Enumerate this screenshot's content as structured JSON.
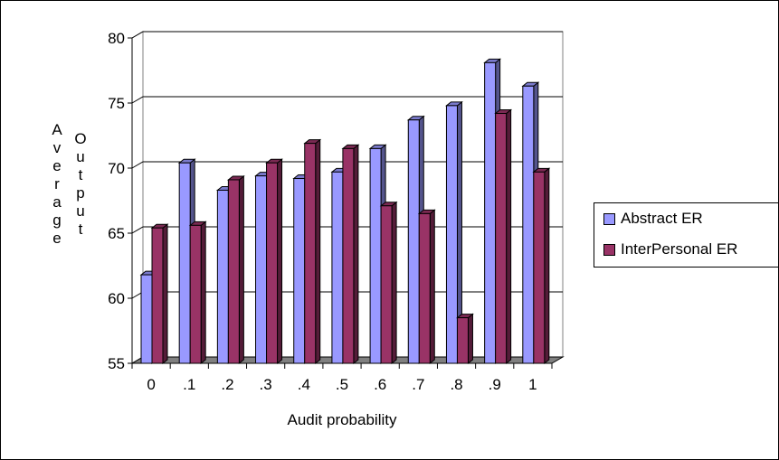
{
  "chart_data": {
    "type": "bar",
    "categories": [
      "0",
      ".1",
      ".2",
      ".3",
      ".4",
      ".5",
      ".6",
      ".7",
      ".8",
      ".9",
      "1"
    ],
    "series": [
      {
        "name": "Abstract ER",
        "values": [
          61.8,
          70.4,
          68.3,
          69.4,
          69.2,
          69.7,
          71.5,
          73.7,
          74.8,
          78.1,
          76.3
        ],
        "color": "#9999ff"
      },
      {
        "name": "InterPersonal ER",
        "values": [
          65.4,
          65.6,
          69.1,
          70.4,
          71.9,
          71.5,
          67.1,
          66.5,
          58.5,
          74.2,
          69.7
        ],
        "color": "#993366"
      }
    ],
    "xlabel": "Audit probability",
    "ylabel_col1": [
      "A",
      "v",
      "e",
      "r",
      "a",
      "g",
      "e"
    ],
    "ylabel_col2": [
      "O",
      "u",
      "t",
      "p",
      "u",
      "t"
    ],
    "ylim": [
      55,
      80
    ],
    "yticks": [
      "80",
      "75",
      "70",
      "65",
      "60",
      "55"
    ],
    "grid": true,
    "legend_position": "right"
  }
}
